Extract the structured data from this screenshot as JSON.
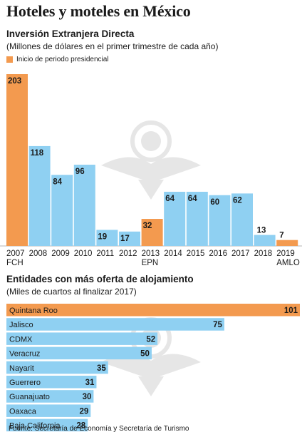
{
  "header": {
    "title": "Hoteles y moteles en México"
  },
  "colors": {
    "highlight": "#f39a4f",
    "default": "#8fd0f2",
    "watermark": "#e6e6e6"
  },
  "chart_data": [
    {
      "type": "bar",
      "title": "Inversión Extranjera Directa",
      "subtitle": "(Millones de dólares en el primer trimestre de cada año)",
      "legend": [
        {
          "label": "Inicio de periodo presidencial",
          "color": "#f39a4f"
        }
      ],
      "legend_position": "top-left",
      "grid": false,
      "ylim": [
        0,
        203
      ],
      "categories": [
        "2007",
        "2008",
        "2009",
        "2010",
        "2011",
        "2012",
        "2013",
        "2014",
        "2015",
        "2016",
        "2017",
        "2018",
        "2019"
      ],
      "sublabels": [
        "FCH",
        "",
        "",
        "",
        "",
        "",
        "EPN",
        "",
        "",
        "",
        "",
        "",
        "AMLO"
      ],
      "values": [
        203,
        118,
        84,
        96,
        19,
        17,
        32,
        64,
        64,
        60,
        62,
        13,
        7
      ],
      "highlight": [
        true,
        false,
        false,
        false,
        false,
        false,
        true,
        false,
        false,
        false,
        false,
        false,
        true
      ]
    },
    {
      "type": "bar",
      "orientation": "horizontal",
      "title": "Entidades con más oferta de alojamiento",
      "subtitle": "(Miles de cuartos al finalizar 2017)",
      "grid": false,
      "xlim": [
        0,
        101
      ],
      "categories": [
        "Quintana Roo",
        "Jalisco",
        "CDMX",
        "Veracruz",
        "Nayarit",
        "Guerrero",
        "Guanajuato",
        "Oaxaca",
        "Baja California"
      ],
      "values": [
        101,
        75,
        52,
        50,
        35,
        31,
        30,
        29,
        28
      ],
      "highlight": [
        true,
        false,
        false,
        false,
        false,
        false,
        false,
        false,
        false
      ]
    }
  ],
  "footer": {
    "source": "Fuente: Secretaría de Economía y Secretaría de Turismo"
  }
}
